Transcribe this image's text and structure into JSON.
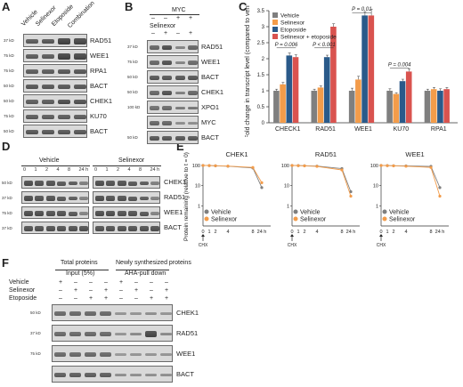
{
  "panels": {
    "A": {
      "label": "A",
      "conditions": [
        "Vehicle",
        "Selinexor",
        "Etoposide",
        "Combination"
      ],
      "blots": [
        {
          "marker": "37 kD",
          "protein": "RAD51",
          "bands": [
            0.7,
            0.75,
            0.95,
            0.9
          ]
        },
        {
          "marker": "75 kD",
          "protein": "WEE1",
          "bands": [
            0.7,
            0.7,
            0.95,
            0.9
          ]
        },
        {
          "marker": "75 kD",
          "protein": "RPA1",
          "bands": [
            0.7,
            0.7,
            0.75,
            0.75
          ]
        },
        {
          "marker": "50 kD",
          "protein": "BACT",
          "bands": [
            0.75,
            0.75,
            0.75,
            0.75
          ]
        },
        {
          "marker": "50 kD",
          "protein": "CHEK1",
          "bands": [
            0.7,
            0.7,
            0.85,
            0.8
          ]
        },
        {
          "marker": "75 kD",
          "protein": "KU70",
          "bands": [
            0.7,
            0.7,
            0.7,
            0.7
          ]
        },
        {
          "marker": "50 kD",
          "protein": "BACT",
          "bands": [
            0.75,
            0.75,
            0.75,
            0.75
          ]
        }
      ]
    },
    "B": {
      "label": "B",
      "header": "MYC",
      "myc_signs": [
        "–",
        "–",
        "+",
        "+"
      ],
      "sel_label": "Selinexor",
      "sel_signs": [
        "–",
        "+",
        "–",
        "+"
      ],
      "blots": [
        {
          "marker": "37 kD",
          "protein": "RAD51",
          "bands": [
            0.6,
            0.85,
            0.3,
            0.6
          ]
        },
        {
          "marker": "75 kD",
          "protein": "WEE1",
          "bands": [
            0.6,
            0.8,
            0.3,
            0.55
          ]
        },
        {
          "marker": "50 kD",
          "protein": "BACT",
          "bands": [
            0.75,
            0.75,
            0.75,
            0.75
          ]
        },
        {
          "marker": "50 kD",
          "protein": "CHEK1",
          "bands": [
            0.6,
            0.8,
            0.35,
            0.6
          ]
        },
        {
          "marker": "100 kD",
          "protein": "XPO1",
          "bands": [
            0.5,
            0.55,
            0.4,
            0.45
          ]
        },
        {
          "marker": "",
          "protein": "MYC",
          "bands": [
            0.6,
            0.6,
            0.2,
            0.2
          ]
        },
        {
          "marker": "50 kD",
          "protein": "BACT",
          "bands": [
            0.75,
            0.75,
            0.75,
            0.75
          ]
        }
      ]
    },
    "C": {
      "label": "C",
      "ylabel": "Fold change in transcript level (compared to vehicle)",
      "pvalues": [
        "P = 0.006",
        "P < 0.001",
        "P = 0.01",
        "P = 0.004"
      ]
    },
    "D": {
      "label": "D",
      "groups": [
        "Vehicle",
        "Selinexor"
      ],
      "timepoints": [
        "0",
        "1",
        "2",
        "4",
        "8",
        "24 h"
      ],
      "blots": [
        {
          "marker": "50 kD",
          "protein": "CHEK1"
        },
        {
          "marker": "37 kD",
          "protein": "RAD51"
        },
        {
          "marker": "75 kD",
          "protein": "WEE1"
        },
        {
          "marker": "37 kD",
          "protein": "BACT"
        }
      ]
    },
    "E": {
      "label": "E",
      "ylabel": "Protein remaining (relative to t = 0)",
      "cht_label": "CHX"
    },
    "F": {
      "label": "F",
      "total_header": "Total proteins",
      "total_sub": "Input (5%)",
      "new_header": "Newly synthesized proteins",
      "new_sub": "AHA-pull down",
      "rows": [
        {
          "name": "Vehicle",
          "signs": [
            "+",
            "–",
            "–",
            "–",
            "+",
            "–",
            "–",
            "–"
          ]
        },
        {
          "name": "Selinexor",
          "signs": [
            "–",
            "+",
            "–",
            "+",
            "–",
            "+",
            "–",
            "+"
          ]
        },
        {
          "name": "Etoposide",
          "signs": [
            "–",
            "–",
            "+",
            "+",
            "–",
            "–",
            "+",
            "+"
          ]
        }
      ],
      "blots": [
        {
          "marker": "50 kD",
          "protein": "CHEK1"
        },
        {
          "marker": "37 kD",
          "protein": "RAD51"
        },
        {
          "marker": "75 kD",
          "protein": "WEE1"
        },
        {
          "marker": "",
          "protein": "BACT"
        }
      ]
    }
  },
  "chart_data": [
    {
      "type": "bar",
      "title": "",
      "xlabel": "",
      "ylabel": "Fold change in transcript level (compared to vehicle)",
      "ylim": [
        0,
        3.5
      ],
      "yticks": [
        0,
        0.5,
        1,
        1.5,
        2,
        2.5,
        3,
        3.5
      ],
      "categories": [
        "CHECK1",
        "RAD51",
        "WEE1",
        "KU70",
        "RPA1"
      ],
      "legend_position": "top-left",
      "colors": [
        "#7f7f7f",
        "#f39c4a",
        "#2a5a8a",
        "#d9534f"
      ],
      "series": [
        {
          "name": "Vehicle",
          "values": [
            1.0,
            1.0,
            1.0,
            1.0,
            1.0
          ]
        },
        {
          "name": "Selinexor",
          "values": [
            1.2,
            1.1,
            1.35,
            0.9,
            1.05
          ]
        },
        {
          "name": "Etoposide",
          "values": [
            2.1,
            2.05,
            3.35,
            1.3,
            1.0
          ]
        },
        {
          "name": "Selinexor + etoposide",
          "values": [
            2.05,
            3.0,
            3.35,
            1.6,
            1.05
          ]
        }
      ],
      "errors": [
        [
          0.05,
          0.05,
          0.08,
          0.06,
          0.05
        ],
        [
          0.06,
          0.05,
          0.1,
          0.04,
          0.05
        ],
        [
          0.08,
          0.06,
          0.12,
          0.06,
          0.06
        ],
        [
          0.07,
          0.09,
          0.2,
          0.08,
          0.05
        ]
      ]
    },
    {
      "type": "line",
      "title": "CHEK1",
      "x": [
        "0",
        "1",
        "2",
        "4",
        "8",
        "24 h"
      ],
      "ylim": [
        0.1,
        100
      ],
      "log_scale": true,
      "yticks": [
        "100",
        "10",
        "1"
      ],
      "series": [
        {
          "name": "Vehicle",
          "values": [
            100,
            99,
            96,
            92,
            75,
            8
          ]
        },
        {
          "name": "Selinexor",
          "values": [
            100,
            99,
            97,
            93,
            80,
            14
          ]
        }
      ],
      "legend_position": "bottom-left"
    },
    {
      "type": "line",
      "title": "RAD51",
      "x": [
        "0",
        "1",
        "2",
        "4",
        "8",
        "24 h"
      ],
      "ylim": [
        0.1,
        100
      ],
      "log_scale": true,
      "yticks": [
        "100",
        "10",
        "1"
      ],
      "series": [
        {
          "name": "Vehicle",
          "values": [
            100,
            99,
            97,
            93,
            70,
            5
          ]
        },
        {
          "name": "Selinexor",
          "values": [
            100,
            98,
            96,
            90,
            60,
            3
          ]
        }
      ],
      "legend_position": "bottom-left"
    },
    {
      "type": "line",
      "title": "WEE1",
      "x": [
        "0",
        "1",
        "2",
        "4",
        "8",
        "24 h"
      ],
      "ylim": [
        0.1,
        100
      ],
      "log_scale": true,
      "yticks": [
        "100",
        "10",
        "1"
      ],
      "series": [
        {
          "name": "Vehicle",
          "values": [
            100,
            99,
            97,
            95,
            90,
            8
          ]
        },
        {
          "name": "Selinexor",
          "values": [
            100,
            98,
            96,
            92,
            80,
            3
          ]
        }
      ],
      "legend_position": "bottom-left"
    }
  ]
}
